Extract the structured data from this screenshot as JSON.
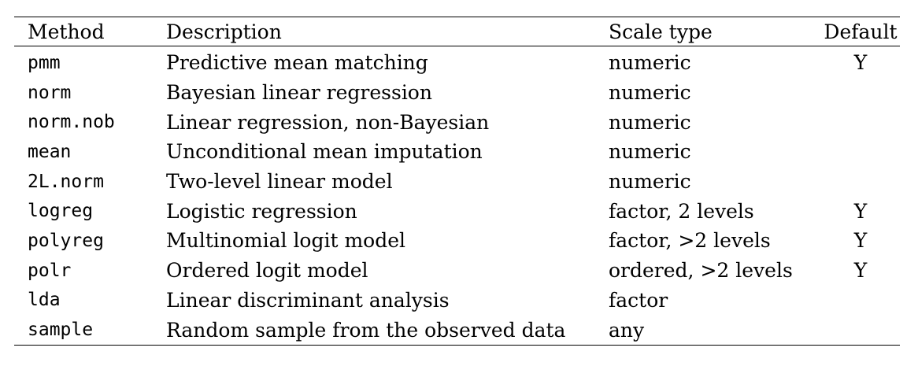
{
  "table": {
    "headers": {
      "method": "Method",
      "description": "Description",
      "scale_type": "Scale type",
      "default": "Default"
    },
    "rows": [
      {
        "method": "pmm",
        "description": "Predictive mean matching",
        "scale_type": "numeric",
        "default": "Y"
      },
      {
        "method": "norm",
        "description": "Bayesian linear regression",
        "scale_type": "numeric",
        "default": ""
      },
      {
        "method": "norm.nob",
        "description": "Linear regression, non-Bayesian",
        "scale_type": "numeric",
        "default": ""
      },
      {
        "method": "mean",
        "description": "Unconditional mean imputation",
        "scale_type": "numeric",
        "default": ""
      },
      {
        "method": "2L.norm",
        "description": "Two-level linear model",
        "scale_type": "numeric",
        "default": ""
      },
      {
        "method": "logreg",
        "description": "Logistic regression",
        "scale_type": "factor, 2 levels",
        "default": "Y"
      },
      {
        "method": "polyreg",
        "description": "Multinomial logit model",
        "scale_type": "factor, >2 levels",
        "default": "Y"
      },
      {
        "method": "polr",
        "description": "Ordered logit model",
        "scale_type": "ordered, >2 levels",
        "default": "Y"
      },
      {
        "method": "lda",
        "description": "Linear discriminant analysis",
        "scale_type": "factor",
        "default": ""
      },
      {
        "method": "sample",
        "description": "Random sample from the observed data",
        "scale_type": "any",
        "default": ""
      }
    ]
  }
}
